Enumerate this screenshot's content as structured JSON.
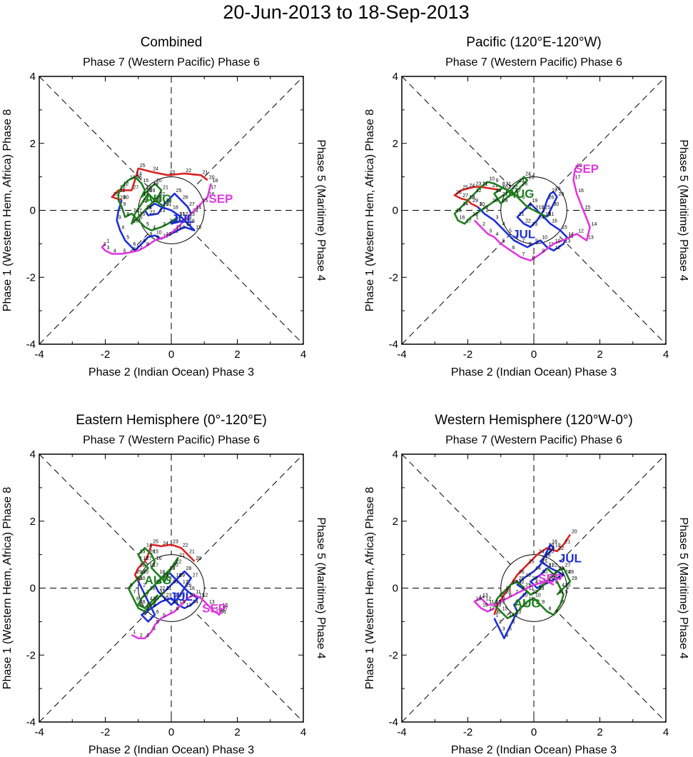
{
  "figure_title": "20-Jun-2013 to 18-Sep-2013",
  "colors": {
    "jun": "#dd2222",
    "jul": "#1f2fd6",
    "aug": "#1f7f1f",
    "sep": "#e039e0",
    "axis": "#000000"
  },
  "chart_data": [
    {
      "type": "line",
      "title": "Combined",
      "top_label": "Phase 7 (Western Pacific) Phase 6",
      "bottom_label": "Phase 2 (Indian Ocean) Phase 3",
      "left_label": "Phase 1 (Western Hem, Africa) Phase 8",
      "right_label": "Phase 5 (Maritime) Phase 4",
      "xlim": [
        -4,
        4
      ],
      "ylim": [
        -4,
        4
      ],
      "xticks": [
        "-4",
        "-2",
        "0",
        "2",
        "4"
      ],
      "yticks": [
        "-4",
        "-2",
        "0",
        "2",
        "4"
      ],
      "unit_circle_radius": 1,
      "month_labels": [
        {
          "text": "JUL",
          "color": "jul",
          "x": 0.35,
          "y": -0.25
        },
        {
          "text": "AUG",
          "color": "aug",
          "x": -0.4,
          "y": 0.35
        },
        {
          "text": "SEP",
          "color": "sep",
          "x": 1.5,
          "y": 0.35
        }
      ],
      "series": [
        {
          "name": "Jun",
          "color": "jun",
          "start_day": 20,
          "x": [
            1.1,
            0.9,
            0.4,
            -0.1,
            -0.6,
            -1.0,
            -1.1,
            -1.2,
            -1.6,
            -1.8,
            -1.5
          ],
          "y": [
            0.9,
            1.05,
            1.1,
            1.05,
            1.15,
            1.25,
            0.9,
            0.6,
            0.6,
            0.4,
            0.3
          ]
        },
        {
          "name": "Jul",
          "color": "jul",
          "start_day": 1,
          "x": [
            -1.5,
            -1.6,
            -1.65,
            -1.55,
            -1.4,
            -1.2,
            -1.1,
            -0.9,
            -0.7,
            -0.5,
            -0.3,
            0.0,
            0.2,
            0.4,
            0.7,
            0.5,
            0.3,
            0.0,
            -0.3,
            -0.5,
            -0.8,
            -0.7,
            -0.4,
            -0.2,
            0.1,
            0.3,
            0.5,
            0.6,
            0.4,
            0.0,
            0.2
          ],
          "y": [
            0.3,
            0.0,
            -0.3,
            -0.6,
            -0.9,
            -1.1,
            -1.2,
            -1.0,
            -0.8,
            -0.75,
            -0.85,
            -0.7,
            -0.6,
            -0.5,
            -0.6,
            -0.4,
            -0.2,
            0.0,
            0.1,
            0.2,
            0.0,
            -0.15,
            -0.1,
            0.2,
            0.5,
            0.3,
            0.1,
            -0.1,
            -0.3,
            -0.4,
            -0.2
          ]
        },
        {
          "name": "Aug",
          "color": "aug",
          "start_day": 1,
          "x": [
            0.2,
            -0.1,
            -0.3,
            -0.6,
            -0.8,
            -1.0,
            -1.2,
            -1.4,
            -1.5,
            -1.6,
            -1.6,
            -1.5,
            -1.3,
            -1.1,
            -0.9,
            -0.8,
            -0.9,
            -0.8,
            -0.6,
            -0.5,
            -0.3,
            -0.4,
            -0.6,
            -0.8,
            -1.0,
            -1.2,
            -1.1,
            -0.9,
            -0.7,
            -0.5,
            -0.2
          ],
          "y": [
            -0.2,
            -0.4,
            -0.5,
            -0.6,
            -0.5,
            -0.3,
            -0.1,
            -0.2,
            0.1,
            0.3,
            0.5,
            0.7,
            0.9,
            1.0,
            0.8,
            0.6,
            0.4,
            0.5,
            0.7,
            0.8,
            0.6,
            0.4,
            0.2,
            0.0,
            -0.2,
            -0.4,
            -0.1,
            0.2,
            0.5,
            0.3,
            0.1
          ]
        },
        {
          "name": "Sep",
          "color": "sep",
          "start_day": 1,
          "x": [
            -2.0,
            -2.1,
            -2.0,
            -1.8,
            -1.5,
            -1.2,
            -1.0,
            -0.8,
            -0.5,
            -0.2,
            0.1,
            0.3,
            0.5,
            0.7,
            0.9,
            1.1,
            1.15,
            1.2
          ],
          "y": [
            -1.0,
            -1.1,
            -1.2,
            -1.3,
            -1.3,
            -1.25,
            -1.2,
            -1.1,
            -0.9,
            -0.8,
            -0.6,
            -0.4,
            -0.2,
            0.0,
            0.2,
            0.4,
            0.6,
            0.8
          ]
        }
      ]
    },
    {
      "type": "line",
      "title": "Pacific (120°E-120°W)",
      "top_label": "Phase 7 (Western Pacific) Phase 6",
      "bottom_label": "Phase 2 (Indian Ocean) Phase 3",
      "left_label": "Phase 1 (Western Hem, Africa) Phase 8",
      "right_label": "Phase 5 (Maritime) Phase 4",
      "xlim": [
        -4,
        4
      ],
      "ylim": [
        -4,
        4
      ],
      "xticks": [
        "-4",
        "-2",
        "0",
        "2",
        "4"
      ],
      "yticks": [
        "-4",
        "-2",
        "0",
        "2",
        "4"
      ],
      "unit_circle_radius": 1,
      "month_labels": [
        {
          "text": "JUL",
          "color": "jul",
          "x": -0.3,
          "y": -0.7
        },
        {
          "text": "AUG",
          "color": "aug",
          "x": -0.4,
          "y": 0.5
        },
        {
          "text": "SEP",
          "color": "sep",
          "x": 1.6,
          "y": 1.25
        }
      ],
      "series": [
        {
          "name": "Jun",
          "color": "jun",
          "start_day": 20,
          "x": [
            -1.0,
            -1.3,
            -1.6,
            -1.8,
            -2.0,
            -2.2,
            -2.4,
            -2.2,
            -2.0,
            -1.9,
            -1.7
          ],
          "y": [
            0.6,
            0.65,
            0.7,
            0.7,
            0.65,
            0.6,
            0.45,
            0.35,
            0.3,
            0.2,
            0.1
          ]
        },
        {
          "name": "Jul",
          "color": "jul",
          "start_day": 1,
          "x": [
            -1.7,
            -1.5,
            -1.2,
            -1.0,
            -0.8,
            -0.6,
            -0.4,
            -0.2,
            0.0,
            0.2,
            0.4,
            0.6,
            0.9,
            1.0,
            0.8,
            0.5,
            0.3,
            0.1,
            -0.1,
            -0.3,
            -0.5,
            -0.3,
            -0.1,
            0.1,
            0.3,
            0.4,
            0.5,
            0.6,
            0.7,
            0.55,
            0.4
          ],
          "y": [
            0.1,
            -0.1,
            -0.3,
            -0.5,
            -0.7,
            -0.9,
            -1.0,
            -1.1,
            -1.0,
            -0.9,
            -1.1,
            -1.2,
            -1.0,
            -0.8,
            -0.6,
            -0.4,
            -0.2,
            0.0,
            0.2,
            0.0,
            -0.2,
            -0.4,
            -0.5,
            -0.3,
            0.0,
            0.3,
            0.5,
            0.55,
            0.4,
            0.1,
            -0.2
          ]
        },
        {
          "name": "Aug",
          "color": "aug",
          "start_day": 1,
          "x": [
            0.4,
            0.2,
            0.0,
            -0.2,
            -0.4,
            -0.6,
            -0.8,
            -1.0,
            -1.2,
            -1.4,
            -1.6,
            -1.8,
            -2.0,
            -2.2,
            -2.4,
            -2.3,
            -2.1,
            -1.9,
            -1.6,
            -1.3,
            -1.0,
            -0.7,
            -0.5,
            -0.3,
            -0.2,
            -0.4,
            -0.6,
            -0.8,
            -1.0,
            -1.2,
            -0.9
          ],
          "y": [
            -0.2,
            -0.1,
            0.0,
            0.1,
            0.3,
            0.5,
            0.6,
            0.7,
            0.8,
            0.85,
            0.7,
            0.5,
            0.3,
            0.1,
            -0.1,
            -0.3,
            -0.4,
            -0.2,
            0.0,
            0.2,
            0.4,
            0.6,
            0.8,
            1.0,
            0.9,
            0.7,
            0.5,
            0.4,
            0.2,
            0.5,
            0.7
          ]
        },
        {
          "name": "Sep",
          "color": "sep",
          "start_day": 1,
          "x": [
            -1.8,
            -1.6,
            -1.4,
            -1.2,
            -1.0,
            -0.7,
            -0.4,
            -0.1,
            0.2,
            0.6,
            1.0,
            1.3,
            1.6,
            1.7,
            1.5,
            1.3,
            1.2,
            1.25
          ],
          "y": [
            -0.3,
            -0.5,
            -0.7,
            -0.8,
            -1.0,
            -1.2,
            -1.4,
            -1.5,
            -1.3,
            -1.0,
            -0.85,
            -0.7,
            -0.9,
            -0.5,
            0.0,
            0.5,
            0.9,
            1.25
          ]
        }
      ]
    },
    {
      "type": "line",
      "title": "Eastern Hemisphere (0°-120°E)",
      "top_label": "Phase 7 (Western Pacific) Phase 6",
      "bottom_label": "Phase 2 (Indian Ocean) Phase 3",
      "left_label": "Phase 1 (Western Hem, Africa) Phase 8",
      "right_label": "Phase 5 (Maritime) Phase 4",
      "xlim": [
        -4,
        4
      ],
      "ylim": [
        -4,
        4
      ],
      "xticks": [
        "-4",
        "-2",
        "0",
        "2",
        "4"
      ],
      "yticks": [
        "-4",
        "-2",
        "0",
        "2",
        "4"
      ],
      "unit_circle_radius": 1,
      "month_labels": [
        {
          "text": "JUL",
          "color": "jul",
          "x": 0.3,
          "y": -0.25
        },
        {
          "text": "AUG",
          "color": "aug",
          "x": -0.4,
          "y": 0.25
        },
        {
          "text": "SEP",
          "color": "sep",
          "x": 1.3,
          "y": -0.6
        }
      ],
      "series": [
        {
          "name": "Jun",
          "color": "jun",
          "start_day": 20,
          "x": [
            0.7,
            0.5,
            0.3,
            0.0,
            -0.3,
            -0.6,
            -0.7,
            -0.8,
            -1.0,
            -1.1,
            -1.0
          ],
          "y": [
            0.8,
            1.0,
            1.2,
            1.3,
            1.25,
            1.3,
            1.0,
            0.8,
            0.6,
            0.4,
            0.2
          ]
        },
        {
          "name": "Jul",
          "color": "jul",
          "start_day": 1,
          "x": [
            -1.0,
            -0.9,
            -0.8,
            -0.7,
            -0.6,
            -0.5,
            -0.7,
            -0.9,
            -0.6,
            -0.3,
            0.0,
            0.2,
            0.4,
            0.6,
            0.8,
            0.5,
            0.3,
            0.1,
            -0.1,
            -0.3,
            -0.5,
            -0.4,
            -0.2,
            0.0,
            0.2,
            0.4,
            0.6,
            0.4,
            0.2,
            0.0,
            -0.2
          ],
          "y": [
            0.2,
            0.0,
            -0.2,
            -0.4,
            -0.6,
            -0.8,
            -1.0,
            -0.8,
            -0.6,
            -0.4,
            -0.3,
            -0.5,
            -0.6,
            -0.5,
            -0.3,
            -0.1,
            0.1,
            0.3,
            0.5,
            0.3,
            0.1,
            -0.1,
            -0.3,
            -0.5,
            -0.3,
            0.0,
            0.3,
            0.5,
            0.3,
            0.1,
            -0.1
          ]
        },
        {
          "name": "Aug",
          "color": "aug",
          "start_day": 1,
          "x": [
            -0.2,
            -0.4,
            -0.6,
            -0.8,
            -1.0,
            -1.1,
            -1.2,
            -1.3,
            -1.1,
            -0.9,
            -0.7,
            -0.9,
            -1.0,
            -0.8,
            -0.6,
            -0.5,
            -0.6,
            -0.4,
            -0.2,
            0.0,
            0.2,
            0.1,
            -0.1,
            -0.3,
            -0.5,
            -0.7,
            -0.9,
            -1.0,
            -0.8,
            -0.6,
            -0.4
          ],
          "y": [
            -0.1,
            -0.3,
            -0.5,
            -0.7,
            -0.6,
            -0.4,
            -0.2,
            0.0,
            0.2,
            0.4,
            0.6,
            0.8,
            1.0,
            1.2,
            1.0,
            0.8,
            0.6,
            0.4,
            0.2,
            0.6,
            0.9,
            0.7,
            0.5,
            0.3,
            0.1,
            -0.1,
            -0.3,
            -0.5,
            -0.6,
            -0.4,
            -0.2
          ]
        },
        {
          "name": "Sep",
          "color": "sep",
          "start_day": 1,
          "x": [
            -1.2,
            -1.0,
            -0.8,
            -0.6,
            -0.5,
            -0.3,
            -0.1,
            0.1,
            0.3,
            0.5,
            0.7,
            0.9,
            1.1,
            1.3,
            1.4,
            1.45,
            1.5,
            1.5
          ],
          "y": [
            -1.4,
            -1.5,
            -1.5,
            -1.3,
            -1.1,
            -0.9,
            -0.8,
            -0.7,
            -0.5,
            -0.3,
            -0.2,
            -0.3,
            -0.5,
            -0.7,
            -0.75,
            -0.8,
            -0.7,
            -0.6
          ]
        }
      ]
    },
    {
      "type": "line",
      "title": "Western Hemisphere (120°W-0°)",
      "top_label": "Phase 7 (Western Pacific) Phase 6",
      "bottom_label": "Phase 2 (Indian Ocean) Phase 3",
      "left_label": "Phase 1 (Western Hem, Africa) Phase 8",
      "right_label": "Phase 5 (Maritime) Phase 4",
      "xlim": [
        -4,
        4
      ],
      "ylim": [
        -4,
        4
      ],
      "xticks": [
        "-4",
        "-2",
        "0",
        "2",
        "4"
      ],
      "yticks": [
        "-4",
        "-2",
        "0",
        "2",
        "4"
      ],
      "unit_circle_radius": 1,
      "month_labels": [
        {
          "text": "JUL",
          "color": "jul",
          "x": 1.1,
          "y": 0.9
        },
        {
          "text": "AUG",
          "color": "aug",
          "x": -0.2,
          "y": -0.45
        },
        {
          "text": "SEP",
          "color": "sep",
          "x": 0.5,
          "y": 0.3
        }
      ],
      "series": [
        {
          "name": "Jun",
          "color": "jun",
          "start_day": 20,
          "x": [
            1.1,
            0.9,
            0.7,
            0.4,
            0.1,
            -0.2,
            -0.5,
            -0.7,
            -0.9,
            -1.1,
            -1.2
          ],
          "y": [
            1.6,
            1.3,
            1.1,
            1.2,
            1.0,
            0.7,
            0.4,
            0.1,
            -0.2,
            -0.5,
            -0.8
          ]
        },
        {
          "name": "Jul",
          "color": "jul",
          "start_day": 1,
          "x": [
            -1.2,
            -1.1,
            -1.0,
            -0.9,
            -0.8,
            -0.7,
            -0.6,
            -0.5,
            -0.6,
            -0.4,
            -0.2,
            -0.5,
            -0.3,
            0.0,
            0.2,
            0.3,
            0.4,
            0.5,
            0.6,
            0.4,
            0.2,
            0.5,
            0.7,
            0.9,
            0.7,
            0.5,
            0.3,
            0.1,
            -0.1,
            0.2,
            0.4
          ],
          "y": [
            -0.9,
            -1.1,
            -1.3,
            -1.5,
            -1.3,
            -1.1,
            -0.9,
            -0.7,
            -0.5,
            -0.3,
            -0.1,
            0.1,
            0.3,
            0.5,
            0.7,
            0.9,
            1.1,
            1.3,
            1.2,
            1.0,
            0.8,
            0.6,
            0.5,
            0.4,
            0.3,
            0.2,
            0.1,
            0.0,
            0.2,
            0.4,
            0.6
          ]
        },
        {
          "name": "Aug",
          "color": "aug",
          "start_day": 1,
          "x": [
            0.4,
            0.6,
            0.7,
            0.8,
            0.9,
            0.8,
            0.6,
            0.4,
            0.2,
            0.0,
            -0.2,
            -0.4,
            -0.6,
            -0.8,
            -1.0,
            -1.2,
            -1.1,
            -0.9,
            -0.7,
            -0.5,
            -0.3,
            -0.1,
            0.1,
            0.3,
            0.5,
            0.7,
            0.9,
            1.0,
            1.1,
            0.9,
            0.7
          ],
          "y": [
            0.6,
            0.4,
            0.2,
            0.0,
            -0.2,
            -0.5,
            -0.8,
            -0.7,
            -0.5,
            -0.3,
            -0.4,
            -0.6,
            -0.8,
            -0.9,
            -0.7,
            -0.5,
            -0.3,
            -0.1,
            0.1,
            0.2,
            0.0,
            -0.2,
            -0.1,
            0.1,
            0.3,
            0.5,
            0.6,
            0.4,
            0.2,
            0.0,
            -0.2
          ]
        },
        {
          "name": "Sep",
          "color": "sep",
          "start_day": 1,
          "x": [
            0.6,
            0.4,
            0.2,
            0.0,
            -0.2,
            -0.4,
            -0.6,
            -0.8,
            -1.0,
            -1.2,
            -1.4,
            -1.5,
            -1.6,
            -1.7,
            -1.8,
            -1.6,
            -1.4,
            -1.2
          ],
          "y": [
            0.1,
            0.2,
            0.15,
            0.1,
            0.0,
            -0.1,
            -0.2,
            -0.3,
            -0.4,
            -0.5,
            -0.5,
            -0.4,
            -0.3,
            -0.35,
            -0.4,
            -0.6,
            -0.7,
            -0.6
          ]
        }
      ]
    }
  ]
}
